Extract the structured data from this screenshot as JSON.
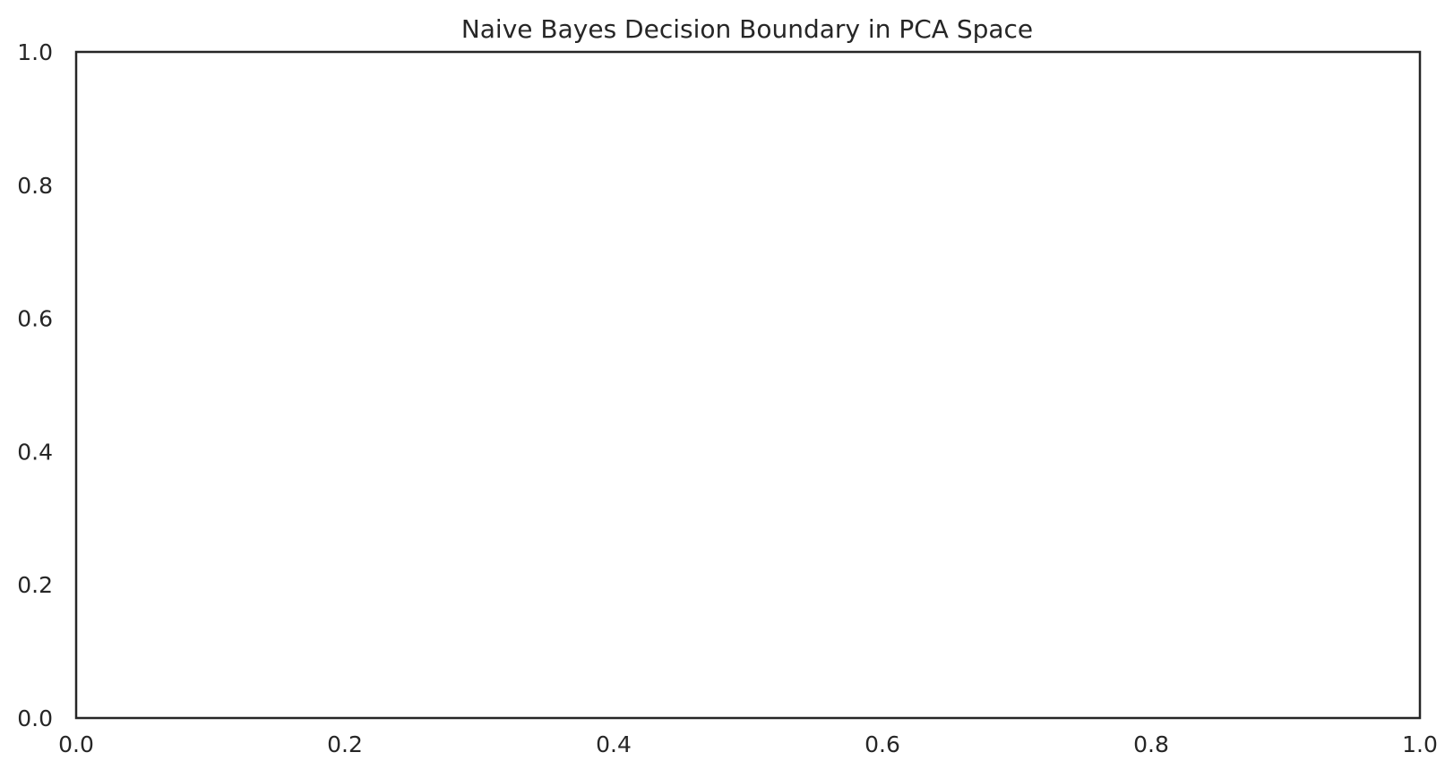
{
  "chart_data": {
    "type": "scatter",
    "title": "Naive Bayes Decision Boundary in PCA Space",
    "xlabel": "",
    "ylabel": "",
    "xlim": [
      0.0,
      1.0
    ],
    "ylim": [
      0.0,
      1.0
    ],
    "x_ticks": [
      "0.0",
      "0.2",
      "0.4",
      "0.6",
      "0.8",
      "1.0"
    ],
    "y_ticks": [
      "0.0",
      "0.2",
      "0.4",
      "0.6",
      "0.8",
      "1.0"
    ],
    "series": [],
    "grid": false,
    "legend": "none"
  },
  "colors": {
    "frame": "#262626",
    "background": "#ffffff",
    "text": "#262626"
  }
}
